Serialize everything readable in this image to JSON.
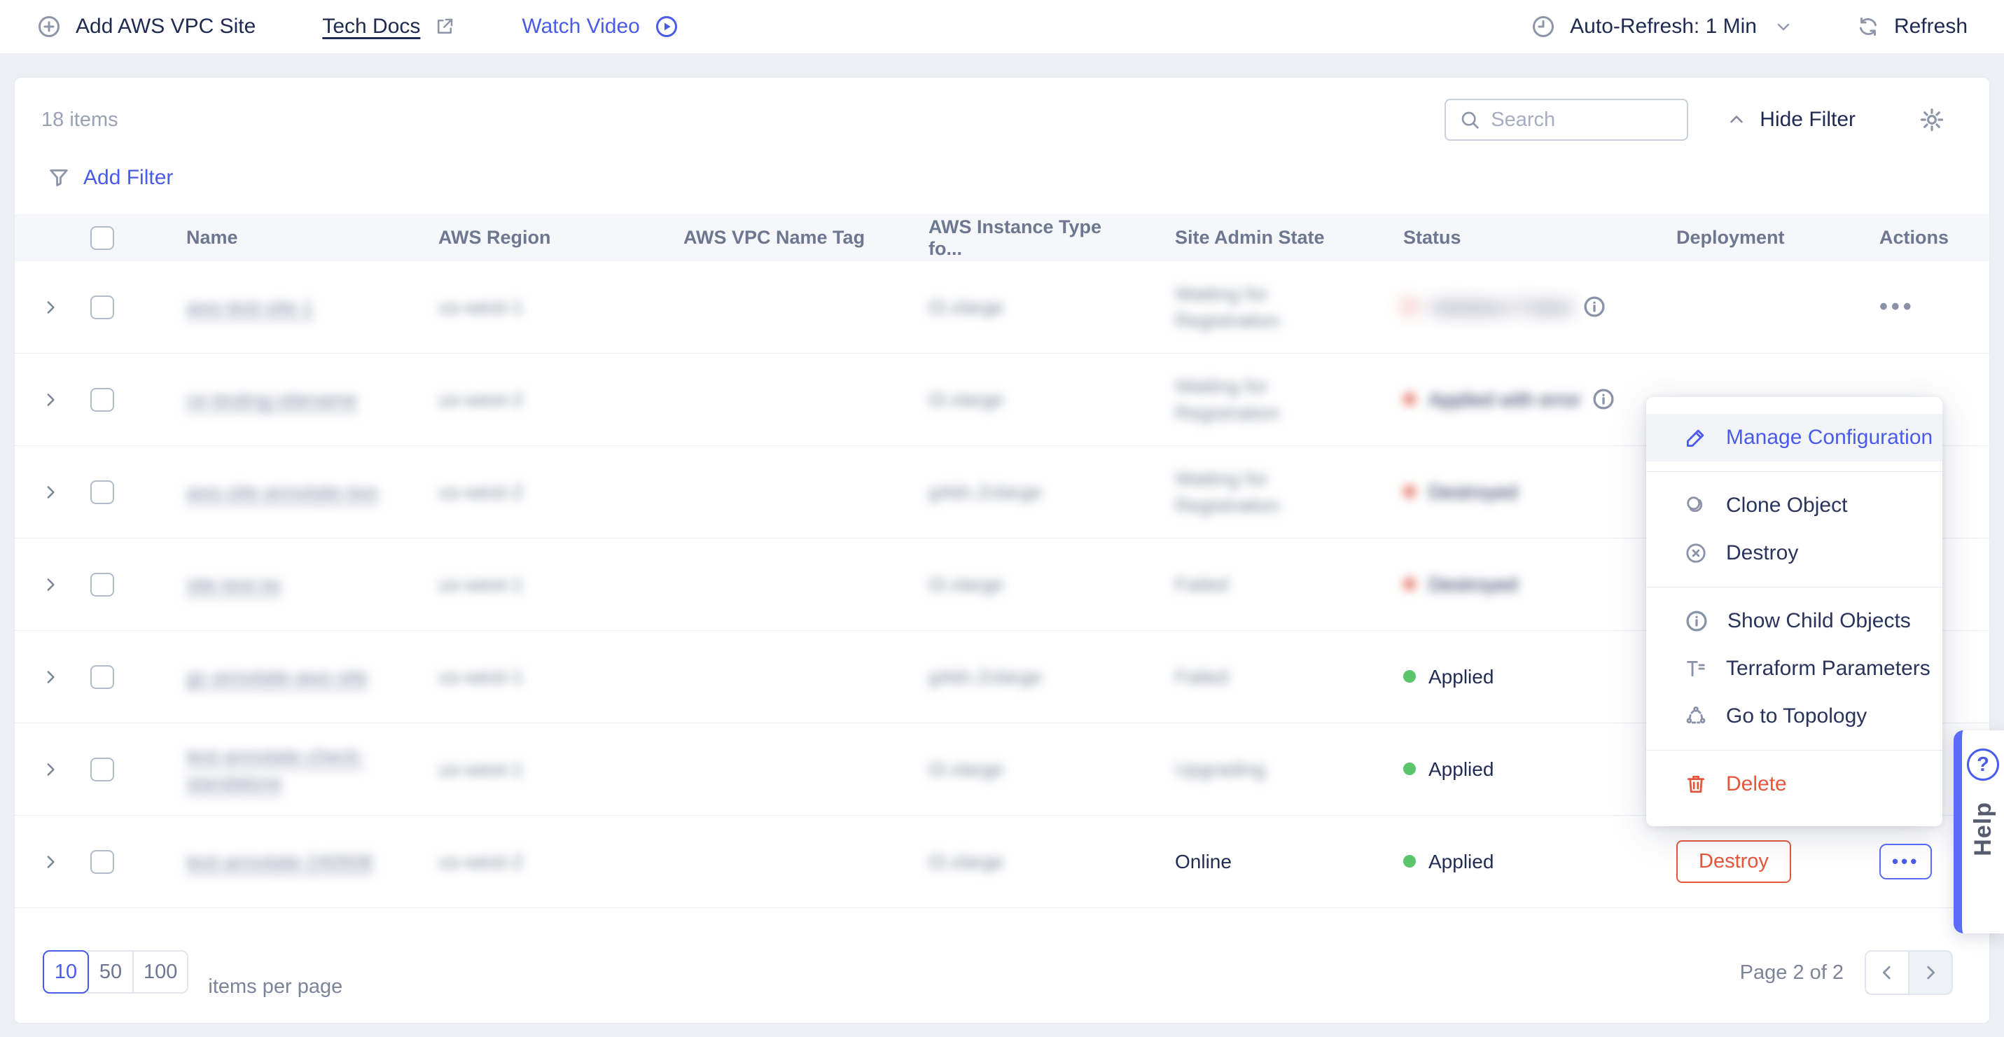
{
  "topbar": {
    "add_site_label": "Add AWS VPC Site",
    "tech_docs_label": "Tech Docs",
    "watch_video_label": "Watch Video",
    "auto_refresh_label": "Auto-Refresh: 1 Min",
    "refresh_label": "Refresh"
  },
  "toolbar": {
    "items_count": "18 items",
    "search_placeholder": "Search",
    "hide_filter_label": "Hide Filter",
    "add_filter_label": "Add Filter"
  },
  "table": {
    "columns": [
      "Name",
      "AWS Region",
      "AWS VPC Name Tag",
      "AWS Instance Type fo...",
      "Site Admin State",
      "Status",
      "Deployment",
      "Actions"
    ],
    "rows": [
      {
        "name": {
          "lines": [
            "aws-test-site-1"
          ],
          "redacted": true
        },
        "region": {
          "text": "us-west-1",
          "redacted": true
        },
        "vpc_name_tag": {
          "text": ""
        },
        "instance_type": {
          "text": "t3.xlarge",
          "redacted": true
        },
        "site_admin_state": {
          "lines": [
            "Waiting for",
            "Registration"
          ],
          "redacted": true
        },
        "status": {
          "text": "Validation Failed",
          "dot_color": "red",
          "redacted": true,
          "heavy_blur": true,
          "info_icon": true
        },
        "deployment": {
          "destroy_button": false
        },
        "actions": {
          "menu_button": "gray"
        }
      },
      {
        "name": {
          "lines": [
            "ce-testing-sitename"
          ],
          "redacted": true
        },
        "region": {
          "text": "us-west-2",
          "redacted": true
        },
        "vpc_name_tag": {
          "text": ""
        },
        "instance_type": {
          "text": "t3.xlarge",
          "redacted": true
        },
        "site_admin_state": {
          "lines": [
            "Waiting for",
            "Registration"
          ],
          "redacted": true
        },
        "status": {
          "text": "Applied with error",
          "dot_color": "red",
          "redacted": true,
          "heavy_blur": false,
          "info_icon": true
        },
        "deployment": {
          "destroy_button": false
        },
        "actions": {
          "menu_button": null
        }
      },
      {
        "name": {
          "lines": [
            "aws-site-annotate-two"
          ],
          "redacted": true
        },
        "region": {
          "text": "us-west-2",
          "redacted": true
        },
        "vpc_name_tag": {
          "text": ""
        },
        "instance_type": {
          "text": "g4dn.2xlarge",
          "redacted": true
        },
        "site_admin_state": {
          "lines": [
            "Waiting for",
            "Registration"
          ],
          "redacted": true
        },
        "status": {
          "text": "Destroyed",
          "dot_color": "red",
          "redacted": true,
          "heavy_blur": false,
          "info_icon": false
        },
        "deployment": {
          "destroy_button": false
        },
        "actions": {
          "menu_button": null
        }
      },
      {
        "name": {
          "lines": [
            "site-test-tw"
          ],
          "redacted": true
        },
        "region": {
          "text": "us-west-1",
          "redacted": true
        },
        "vpc_name_tag": {
          "text": ""
        },
        "instance_type": {
          "text": "t3.xlarge",
          "redacted": true
        },
        "site_admin_state": {
          "lines": [
            "Failed"
          ],
          "redacted": true
        },
        "status": {
          "text": "Destroyed",
          "dot_color": "red",
          "redacted": true,
          "heavy_blur": false,
          "info_icon": false
        },
        "deployment": {
          "destroy_button": false
        },
        "actions": {
          "menu_button": null
        }
      },
      {
        "name": {
          "lines": [
            "gc-annotate-aws-site"
          ],
          "redacted": true
        },
        "region": {
          "text": "us-west-1",
          "redacted": true
        },
        "vpc_name_tag": {
          "text": ""
        },
        "instance_type": {
          "text": "g4dn.2xlarge",
          "redacted": true
        },
        "site_admin_state": {
          "lines": [
            "Failed"
          ],
          "redacted": true
        },
        "status": {
          "text": "Applied",
          "dot_color": "green",
          "redacted": false,
          "heavy_blur": false,
          "info_icon": false
        },
        "deployment": {
          "destroy_button": false
        },
        "actions": {
          "menu_button": null
        }
      },
      {
        "name": {
          "lines": [
            "test-annotate-check-",
            "standalone"
          ],
          "redacted": true
        },
        "region": {
          "text": "us-west-1",
          "redacted": true
        },
        "vpc_name_tag": {
          "text": ""
        },
        "instance_type": {
          "text": "t3.xlarge",
          "redacted": true
        },
        "site_admin_state": {
          "lines": [
            "Upgrading"
          ],
          "redacted": true
        },
        "status": {
          "text": "Applied",
          "dot_color": "green",
          "redacted": false,
          "heavy_blur": false,
          "info_icon": false
        },
        "deployment": {
          "destroy_button": false
        },
        "actions": {
          "menu_button": null
        }
      },
      {
        "name": {
          "lines": [
            "test-annotate-240508"
          ],
          "redacted": true
        },
        "region": {
          "text": "us-west-2",
          "redacted": true
        },
        "vpc_name_tag": {
          "text": ""
        },
        "instance_type": {
          "text": "t3.xlarge",
          "redacted": true
        },
        "site_admin_state": {
          "lines": [
            "Online"
          ],
          "redacted": false
        },
        "status": {
          "text": "Applied",
          "dot_color": "green",
          "redacted": false,
          "heavy_blur": false,
          "info_icon": false
        },
        "deployment": {
          "destroy_button": true,
          "destroy_label": "Destroy"
        },
        "actions": {
          "menu_button": "active"
        }
      }
    ]
  },
  "context_menu": {
    "items": [
      {
        "label": "Manage Configuration",
        "icon": "pencil",
        "style": "primary",
        "highlighted": true
      },
      {
        "divider": true
      },
      {
        "label": "Clone Object",
        "icon": "clone",
        "style": "default",
        "highlighted": false
      },
      {
        "label": "Destroy",
        "icon": "circle-x",
        "style": "default",
        "highlighted": false
      },
      {
        "divider": true
      },
      {
        "label": "Show Child Objects",
        "icon": "info-circle",
        "style": "default",
        "highlighted": false
      },
      {
        "label": "Terraform Parameters",
        "icon": "terraform",
        "style": "default",
        "highlighted": false
      },
      {
        "label": "Go to Topology",
        "icon": "topology",
        "style": "default",
        "highlighted": false
      },
      {
        "divider": true
      },
      {
        "label": "Delete",
        "icon": "trash",
        "style": "danger",
        "highlighted": false
      }
    ]
  },
  "pagination": {
    "sizes": [
      "10",
      "50",
      "100"
    ],
    "active_size": "10",
    "per_page_label": "items per page",
    "page_label": "Page 2 of 2"
  },
  "help": {
    "label": "Help",
    "icon_glyph": "?"
  },
  "colors": {
    "accent_blue": "#4a5bea",
    "danger_red": "#e4573d",
    "status_green": "#5ac56b",
    "status_red": "#e5776d"
  }
}
